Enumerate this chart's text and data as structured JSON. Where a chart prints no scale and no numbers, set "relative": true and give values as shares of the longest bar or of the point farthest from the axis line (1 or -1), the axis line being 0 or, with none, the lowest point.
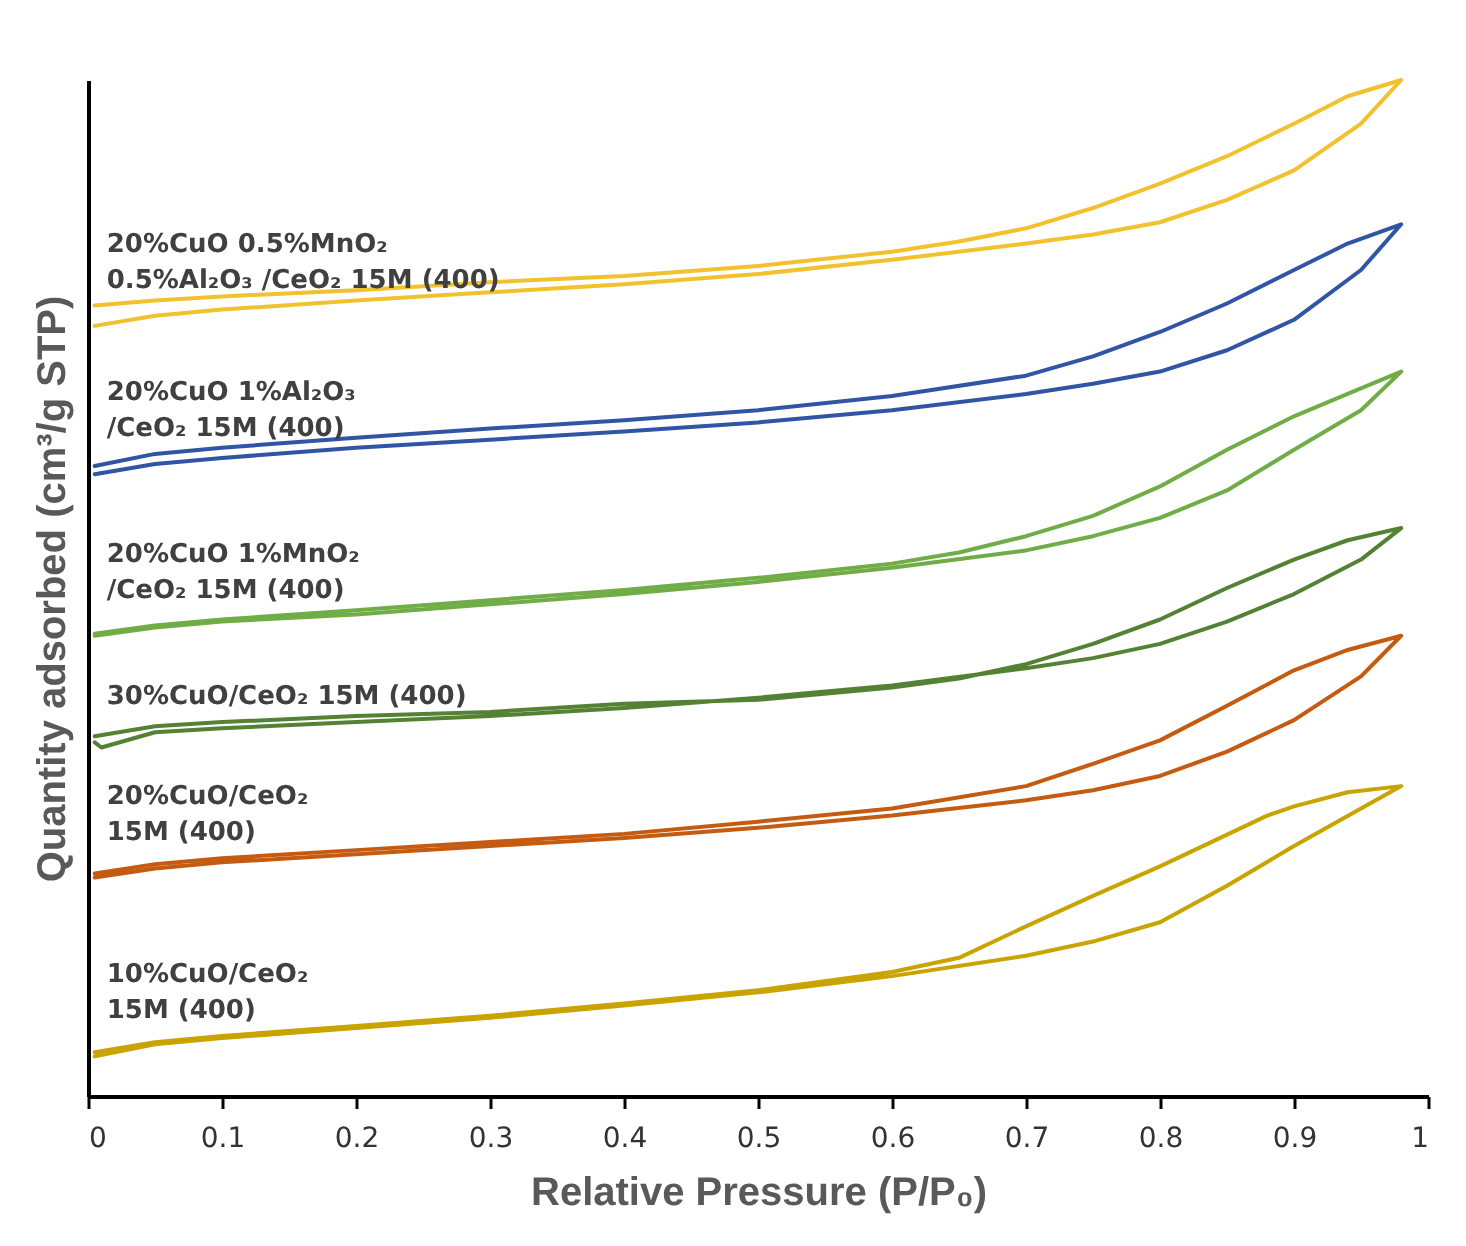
{
  "chart_data": {
    "type": "line",
    "xlabel": "Relative Pressure (P/P₀)",
    "ylabel": "Quantity adsorbed (cm³/g STP)",
    "relative": true,
    "xlim": [
      0,
      1
    ],
    "xticks": [
      0,
      0.1,
      0.2,
      0.3,
      0.4,
      0.5,
      0.6,
      0.7,
      0.8,
      0.9,
      1
    ],
    "series": [
      {
        "name": "20%CuO 0.5%MnO₂\n0.5%Al₂O₃ /CeO₂ 15M (400)",
        "color": "#f2c12e",
        "x": [
          0.005,
          0.05,
          0.1,
          0.2,
          0.3,
          0.4,
          0.5,
          0.6,
          0.7,
          0.75,
          0.8,
          0.85,
          0.9,
          0.95,
          0.98,
          0.94,
          0.9,
          0.85,
          0.8,
          0.75,
          0.7,
          0.65,
          0.6,
          0.5,
          0.4,
          0.3,
          0.2,
          0.1,
          0.05,
          0.005
        ],
        "values": [
          0.758,
          0.768,
          0.774,
          0.783,
          0.791,
          0.799,
          0.809,
          0.823,
          0.839,
          0.848,
          0.86,
          0.882,
          0.911,
          0.957,
          1,
          0.984,
          0.957,
          0.925,
          0.898,
          0.874,
          0.854,
          0.841,
          0.831,
          0.817,
          0.807,
          0.801,
          0.793,
          0.787,
          0.783,
          0.778
        ]
      },
      {
        "name": "20%CuO 1%Al₂O₃\n/CeO₂ 15M (400)",
        "color": "#2f55a4",
        "x": [
          0.005,
          0.05,
          0.1,
          0.2,
          0.3,
          0.4,
          0.5,
          0.6,
          0.7,
          0.75,
          0.8,
          0.85,
          0.9,
          0.95,
          0.98,
          0.94,
          0.9,
          0.85,
          0.8,
          0.75,
          0.7,
          0.6,
          0.5,
          0.4,
          0.3,
          0.2,
          0.1,
          0.05,
          0.005
        ],
        "values": [
          0.612,
          0.622,
          0.628,
          0.638,
          0.646,
          0.654,
          0.663,
          0.675,
          0.691,
          0.701,
          0.713,
          0.734,
          0.764,
          0.813,
          0.858,
          0.839,
          0.813,
          0.78,
          0.752,
          0.728,
          0.709,
          0.689,
          0.675,
          0.665,
          0.657,
          0.648,
          0.638,
          0.632,
          0.62
        ]
      },
      {
        "name": "20%CuO 1%MnO₂\n/CeO₂ 15M (400)",
        "color": "#70ad47",
        "x": [
          0.005,
          0.05,
          0.1,
          0.2,
          0.3,
          0.4,
          0.5,
          0.6,
          0.7,
          0.75,
          0.8,
          0.85,
          0.9,
          0.95,
          0.98,
          0.94,
          0.9,
          0.85,
          0.8,
          0.75,
          0.7,
          0.65,
          0.6,
          0.5,
          0.4,
          0.3,
          0.2,
          0.1,
          0.05,
          0.005
        ],
        "values": [
          0.453,
          0.461,
          0.467,
          0.474,
          0.484,
          0.494,
          0.506,
          0.52,
          0.537,
          0.551,
          0.569,
          0.596,
          0.636,
          0.675,
          0.713,
          0.691,
          0.669,
          0.636,
          0.6,
          0.571,
          0.551,
          0.535,
          0.524,
          0.51,
          0.498,
          0.488,
          0.478,
          0.469,
          0.463,
          0.455
        ]
      },
      {
        "name": "30%CuO/CeO₂ 15M (400)",
        "color": "#548235",
        "x": [
          0.005,
          0.01,
          0.05,
          0.1,
          0.2,
          0.3,
          0.4,
          0.5,
          0.6,
          0.7,
          0.75,
          0.8,
          0.85,
          0.9,
          0.95,
          0.98,
          0.94,
          0.9,
          0.85,
          0.8,
          0.75,
          0.7,
          0.65,
          0.6,
          0.5,
          0.4,
          0.3,
          0.2,
          0.1,
          0.05,
          0.005
        ],
        "values": [
          0.348,
          0.343,
          0.358,
          0.362,
          0.368,
          0.374,
          0.382,
          0.392,
          0.404,
          0.421,
          0.431,
          0.445,
          0.467,
          0.494,
          0.528,
          0.559,
          0.547,
          0.528,
          0.5,
          0.469,
          0.445,
          0.425,
          0.411,
          0.402,
          0.39,
          0.386,
          0.378,
          0.374,
          0.368,
          0.364,
          0.354
        ]
      },
      {
        "name": "20%CuO/CeO₂\n15M (400)",
        "color": "#c55a11",
        "x": [
          0.005,
          0.05,
          0.1,
          0.2,
          0.3,
          0.4,
          0.5,
          0.6,
          0.7,
          0.75,
          0.8,
          0.85,
          0.9,
          0.95,
          0.98,
          0.94,
          0.9,
          0.85,
          0.8,
          0.75,
          0.7,
          0.6,
          0.5,
          0.4,
          0.3,
          0.2,
          0.1,
          0.05,
          0.005
        ],
        "values": [
          0.215,
          0.224,
          0.23,
          0.238,
          0.246,
          0.254,
          0.264,
          0.276,
          0.291,
          0.301,
          0.315,
          0.339,
          0.37,
          0.413,
          0.453,
          0.439,
          0.419,
          0.384,
          0.35,
          0.327,
          0.305,
          0.283,
          0.27,
          0.258,
          0.25,
          0.242,
          0.234,
          0.228,
          0.219
        ]
      },
      {
        "name": "10%CuO/CeO₂\n15M (400)",
        "color": "#c9a400",
        "x": [
          0.005,
          0.05,
          0.1,
          0.2,
          0.3,
          0.4,
          0.5,
          0.6,
          0.7,
          0.75,
          0.8,
          0.85,
          0.9,
          0.95,
          0.98,
          0.94,
          0.9,
          0.88,
          0.8,
          0.75,
          0.7,
          0.65,
          0.6,
          0.5,
          0.4,
          0.3,
          0.2,
          0.1,
          0.05,
          0.005
        ],
        "values": [
          0.039,
          0.051,
          0.057,
          0.067,
          0.077,
          0.089,
          0.102,
          0.118,
          0.138,
          0.152,
          0.171,
          0.207,
          0.246,
          0.283,
          0.305,
          0.299,
          0.285,
          0.276,
          0.226,
          0.197,
          0.167,
          0.136,
          0.122,
          0.104,
          0.091,
          0.079,
          0.069,
          0.059,
          0.053,
          0.043
        ]
      }
    ]
  }
}
